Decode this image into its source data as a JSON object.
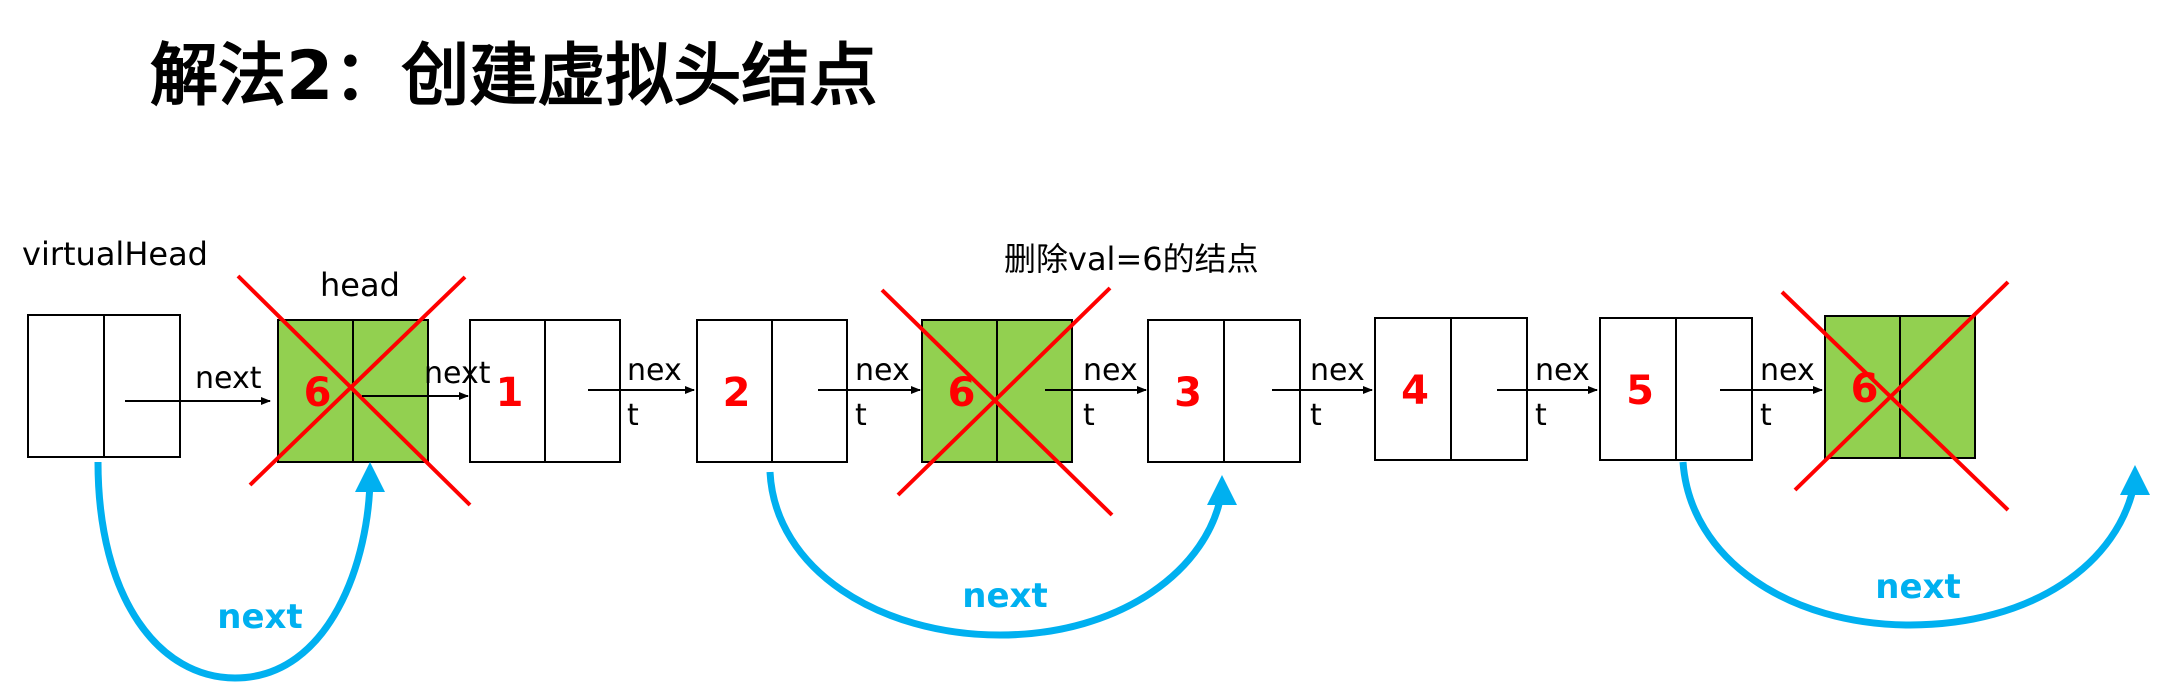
{
  "title": "解法2：创建虚拟头结点",
  "colors": {
    "deleted_fill": "#92d050",
    "value_text": "#ff0000",
    "cross": "#ff0000",
    "bypass_arrow": "#00b0f0"
  },
  "labels": {
    "virtual_head": "virtualHead",
    "head": "head",
    "delete_caption": "删除val=6的结点"
  },
  "next_labels": {
    "one_line": "next",
    "split_top": "nex",
    "split_bottom": "t"
  },
  "nodes": [
    {
      "id": "virtual",
      "value": "",
      "deleted": false
    },
    {
      "id": "n1",
      "value": "6",
      "deleted": true
    },
    {
      "id": "n2",
      "value": "1",
      "deleted": false
    },
    {
      "id": "n3",
      "value": "2",
      "deleted": false
    },
    {
      "id": "n4",
      "value": "6",
      "deleted": true
    },
    {
      "id": "n5",
      "value": "3",
      "deleted": false
    },
    {
      "id": "n6",
      "value": "4",
      "deleted": false
    },
    {
      "id": "n7",
      "value": "5",
      "deleted": false
    },
    {
      "id": "n8",
      "value": "6",
      "deleted": true
    }
  ],
  "bypass_arrows": [
    {
      "label": "next"
    },
    {
      "label": "next"
    },
    {
      "label": "next"
    }
  ]
}
